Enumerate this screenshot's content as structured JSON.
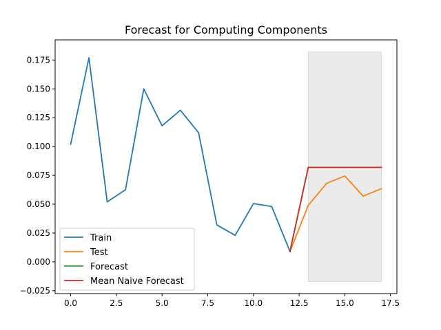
{
  "chart_data": {
    "type": "line",
    "title": "Forecast for Computing Components",
    "xlabel": "",
    "ylabel": "",
    "xlim": [
      -0.85,
      17.85
    ],
    "ylim": [
      -0.0275,
      0.1925
    ],
    "xticks": [
      0.0,
      2.5,
      5.0,
      7.5,
      10.0,
      12.5,
      15.0,
      17.5
    ],
    "xtick_labels": [
      "0.0",
      "2.5",
      "5.0",
      "7.5",
      "10.0",
      "12.5",
      "15.0",
      "17.5"
    ],
    "yticks": [
      -0.025,
      0.0,
      0.025,
      0.05,
      0.075,
      0.1,
      0.125,
      0.15,
      0.175
    ],
    "ytick_labels": [
      "−0.025",
      "0.000",
      "0.025",
      "0.050",
      "0.075",
      "0.100",
      "0.125",
      "0.150",
      "0.175"
    ],
    "grid": false,
    "legend_position": "lower-left",
    "confidence_band": {
      "x": [
        13,
        17
      ],
      "y": [
        -0.017,
        0.182
      ],
      "color": "#ebebeb"
    },
    "series": [
      {
        "name": "Train",
        "color": "#1f77b4",
        "x": [
          0,
          1,
          2,
          3,
          4,
          5,
          6,
          7,
          8,
          9,
          10,
          11,
          12
        ],
        "values": [
          0.102,
          0.177,
          0.052,
          0.0625,
          0.15,
          0.118,
          0.1315,
          0.112,
          0.032,
          0.023,
          0.0505,
          0.048,
          0.009
        ]
      },
      {
        "name": "Test",
        "color": "#ff7f0e",
        "x": [
          12,
          13,
          14,
          15,
          16,
          17
        ],
        "values": [
          0.009,
          0.049,
          0.068,
          0.0745,
          0.057,
          0.0635
        ]
      },
      {
        "name": "Forecast",
        "color": "#2ca02c",
        "x": [
          12,
          13,
          14,
          15,
          16,
          17
        ],
        "values": [
          0.009,
          0.082,
          0.082,
          0.082,
          0.082,
          0.082
        ]
      },
      {
        "name": "Mean Naive Forecast",
        "color": "#d62728",
        "x": [
          12,
          13,
          14,
          15,
          16,
          17
        ],
        "values": [
          0.009,
          0.082,
          0.082,
          0.082,
          0.082,
          0.082
        ]
      }
    ]
  }
}
